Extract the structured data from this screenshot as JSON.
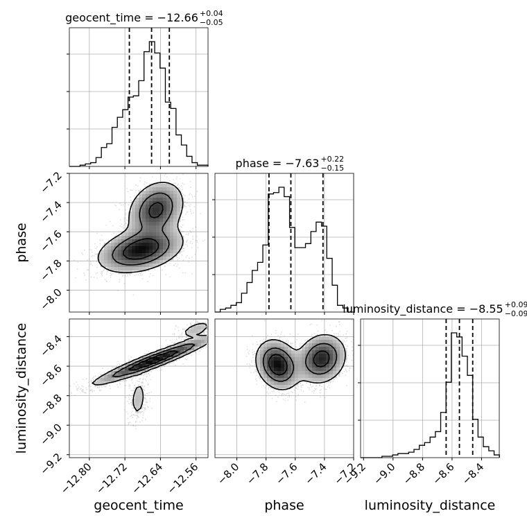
{
  "chart_data": {
    "type": "corner",
    "parameters": [
      {
        "name": "geocent_time",
        "title": {
          "prefix": "geocent_time = −12.66",
          "plus": "+0.04",
          "minus": "−0.05"
        },
        "range": [
          -12.845,
          -12.533
        ],
        "ticks": [
          -12.8,
          -12.72,
          -12.64,
          -12.56
        ],
        "tick_labels": [
          "−12.80",
          "−12.72",
          "−12.64",
          "−12.56"
        ],
        "quantiles": [
          -12.71,
          -12.66,
          -12.62
        ],
        "hist": {
          "edges": [
            -12.845,
            -12.833,
            -12.821,
            -12.809,
            -12.797,
            -12.785,
            -12.773,
            -12.761,
            -12.749,
            -12.737,
            -12.725,
            -12.713,
            -12.701,
            -12.689,
            -12.677,
            -12.665,
            -12.653,
            -12.641,
            -12.629,
            -12.617,
            -12.605,
            -12.593,
            -12.581,
            -12.569,
            -12.557,
            -12.545,
            -12.533
          ],
          "counts": [
            0,
            0,
            0.01,
            0.02,
            0.03,
            0.07,
            0.15,
            0.18,
            0.31,
            0.39,
            0.45,
            0.55,
            0.56,
            0.68,
            0.91,
            0.99,
            0.9,
            0.78,
            0.51,
            0.46,
            0.25,
            0.17,
            0.08,
            0.03,
            0.01,
            0.01
          ]
        }
      },
      {
        "name": "phase",
        "title": {
          "prefix": "phase = −7.63",
          "plus": "+0.22",
          "minus": "−0.15"
        },
        "range": [
          -8.15,
          -7.2
        ],
        "ticks": [
          -8.0,
          -7.8,
          -7.6,
          -7.4,
          -7.2
        ],
        "tick_labels": [
          "−8.0",
          "−7.8",
          "−7.6",
          "−7.4",
          "−7.2"
        ],
        "quantiles": [
          -7.78,
          -7.63,
          -7.41
        ],
        "hist": {
          "edges": [
            -8.15,
            -8.114,
            -8.077,
            -8.041,
            -8.004,
            -7.968,
            -7.931,
            -7.895,
            -7.858,
            -7.822,
            -7.785,
            -7.749,
            -7.712,
            -7.676,
            -7.639,
            -7.603,
            -7.566,
            -7.53,
            -7.493,
            -7.457,
            -7.42,
            -7.384,
            -7.347,
            -7.311,
            -7.274,
            -7.238,
            -7.201
          ],
          "counts": [
            0,
            0.02,
            0.03,
            0.05,
            0.07,
            0.14,
            0.22,
            0.31,
            0.37,
            0.5,
            0.88,
            0.89,
            0.93,
            0.86,
            0.63,
            0.48,
            0.48,
            0.51,
            0.6,
            0.67,
            0.64,
            0.4,
            0.2,
            0.05,
            0.03,
            0
          ]
        }
      },
      {
        "name": "luminosity_distance",
        "title": {
          "prefix": "luminosity_distance = −8.55",
          "plus": "+0.09",
          "minus": "−0.09"
        },
        "range": [
          -9.22,
          -8.28
        ],
        "ticks": [
          -9.2,
          -9.0,
          -8.8,
          -8.6,
          -8.4
        ],
        "tick_labels": [
          "−9.2",
          "−9.0",
          "−8.8",
          "−8.6",
          "−8.4"
        ],
        "quantiles": [
          -8.64,
          -8.55,
          -8.46
        ],
        "hist": {
          "edges": [
            -9.22,
            -9.184,
            -9.148,
            -9.111,
            -9.075,
            -9.039,
            -9.003,
            -8.967,
            -8.93,
            -8.894,
            -8.858,
            -8.822,
            -8.786,
            -8.749,
            -8.713,
            -8.677,
            -8.641,
            -8.605,
            -8.568,
            -8.532,
            -8.496,
            -8.46,
            -8.424,
            -8.388,
            -8.351,
            -8.315,
            -8.279
          ],
          "counts": [
            0,
            0,
            0,
            0,
            0.01,
            0.01,
            0.02,
            0.03,
            0.03,
            0.04,
            0.06,
            0.09,
            0.11,
            0.15,
            0.19,
            0.33,
            0.55,
            0.91,
            0.88,
            0.74,
            0.6,
            0.28,
            0.15,
            0.08,
            0.05,
            0.02
          ]
        }
      }
    ],
    "pairs": [
      {
        "row": 1,
        "col": 0,
        "x": "geocent_time",
        "y": "phase",
        "components": [
          {
            "mx": -12.685,
            "my": -7.725,
            "sx": 0.048,
            "sy": 0.078,
            "rho": 0.35,
            "w": 0.58
          },
          {
            "mx": -12.65,
            "my": -7.45,
            "sx": 0.032,
            "sy": 0.1,
            "rho": 0.25,
            "w": 0.42
          }
        ]
      },
      {
        "row": 2,
        "col": 0,
        "x": "geocent_time",
        "y": "luminosity_distance",
        "components": [
          {
            "mx": -12.655,
            "my": -8.56,
            "sx": 0.07,
            "sy": 0.085,
            "rho": 0.95,
            "w": 0.82
          },
          {
            "mx": -12.69,
            "my": -8.82,
            "sx": 0.012,
            "sy": 0.09,
            "rho": 0.2,
            "w": 0.1
          },
          {
            "mx": -12.56,
            "my": -8.35,
            "sx": 0.025,
            "sy": 0.04,
            "rho": 0.6,
            "w": 0.08
          }
        ]
      },
      {
        "row": 2,
        "col": 1,
        "x": "phase",
        "y": "luminosity_distance",
        "components": [
          {
            "mx": -7.72,
            "my": -8.59,
            "sx": 0.075,
            "sy": 0.085,
            "rho": -0.2,
            "w": 0.5
          },
          {
            "mx": -7.42,
            "my": -8.55,
            "sx": 0.085,
            "sy": 0.085,
            "rho": 0.15,
            "w": 0.5
          }
        ]
      }
    ],
    "colors": {
      "line": "#000000",
      "grid": "#b0b0b0",
      "points": "#8c8c8c"
    },
    "grid": true
  }
}
